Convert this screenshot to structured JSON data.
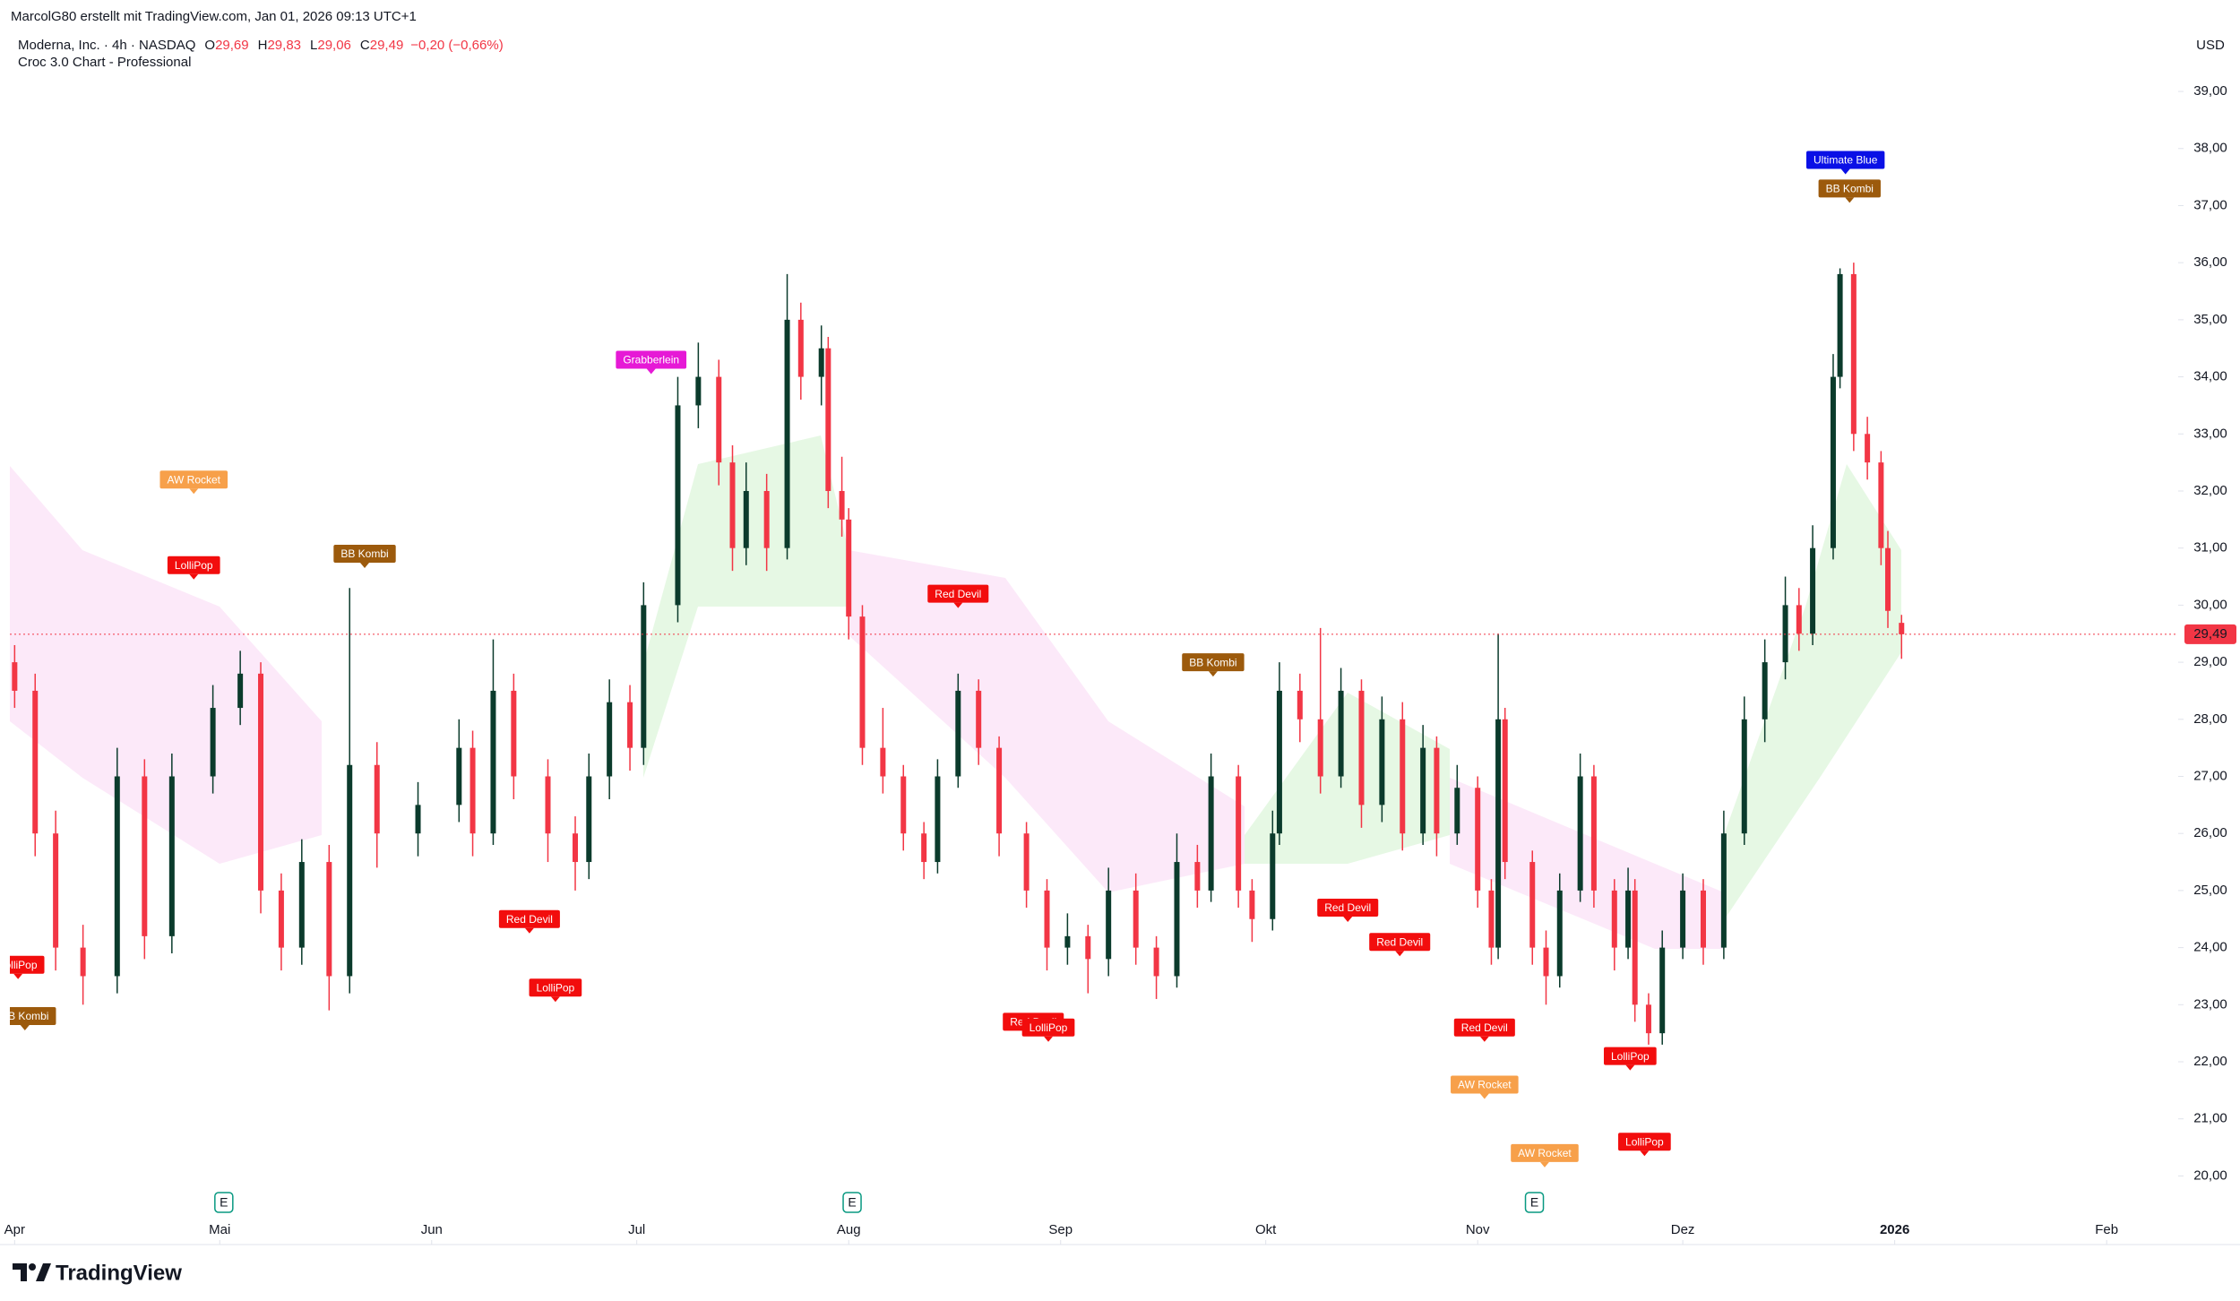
{
  "header": {
    "credit": "MarcolG80 erstellt mit TradingView.com, Jan 01, 2026 09:13 UTC+1",
    "symbol": "Moderna, Inc. · 4h · NASDAQ",
    "legend": [
      {
        "key": "O",
        "value": "29,69"
      },
      {
        "key": "H",
        "value": "29,83"
      },
      {
        "key": "L",
        "value": "29,06"
      },
      {
        "key": "C",
        "value": "29,49"
      }
    ],
    "change": "−0,20 (−0,66%)",
    "indicator": "Croc 3.0 Chart - Professional",
    "currency": "USD"
  },
  "brand": "TradingView",
  "chart_data": {
    "type": "candlestick",
    "up_color": "#0b3b2c",
    "down_color": "#f23645",
    "xlim": [
      -0.7,
      316.2
    ],
    "xticks": [
      {
        "value": 0,
        "label": "Apr"
      },
      {
        "value": 30,
        "label": "Mai"
      },
      {
        "value": 61,
        "label": "Jun"
      },
      {
        "value": 91,
        "label": "Jul"
      },
      {
        "value": 122,
        "label": "Aug"
      },
      {
        "value": 153,
        "label": "Sep"
      },
      {
        "value": 183,
        "label": "Okt"
      },
      {
        "value": 214,
        "label": "Nov"
      },
      {
        "value": 244,
        "label": "Dez"
      },
      {
        "value": 275,
        "label": "2026"
      },
      {
        "value": 306,
        "label": "Feb"
      }
    ],
    "ylim": [
      19.3,
      40.1
    ],
    "yticks": [
      {
        "value": 20,
        "label": "20,00"
      },
      {
        "value": 21,
        "label": "21,00"
      },
      {
        "value": 22,
        "label": "22,00"
      },
      {
        "value": 23,
        "label": "23,00"
      },
      {
        "value": 24,
        "label": "24,00"
      },
      {
        "value": 25,
        "label": "25,00"
      },
      {
        "value": 26,
        "label": "26,00"
      },
      {
        "value": 27,
        "label": "27,00"
      },
      {
        "value": 28,
        "label": "28,00"
      },
      {
        "value": 29,
        "label": "29,00"
      },
      {
        "value": 30,
        "label": "30,00"
      },
      {
        "value": 31,
        "label": "31,00"
      },
      {
        "value": 32,
        "label": "32,00"
      },
      {
        "value": 33,
        "label": "33,00"
      },
      {
        "value": 34,
        "label": "34,00"
      },
      {
        "value": 35,
        "label": "35,00"
      },
      {
        "value": 36,
        "label": "36,00"
      },
      {
        "value": 37,
        "label": "37,00"
      },
      {
        "value": 38,
        "label": "38,00"
      },
      {
        "value": 39,
        "label": "39,00"
      }
    ],
    "candles": [
      [
        0,
        29.0,
        29.3,
        28.2,
        28.5
      ],
      [
        3,
        28.5,
        28.8,
        25.6,
        26.0
      ],
      [
        6,
        26.0,
        26.4,
        23.6,
        24.0
      ],
      [
        10,
        24.0,
        24.4,
        23.0,
        23.5
      ],
      [
        15,
        23.5,
        27.5,
        23.2,
        27.0
      ],
      [
        19,
        27.0,
        27.3,
        23.8,
        24.2
      ],
      [
        23,
        24.2,
        27.4,
        23.9,
        27.0
      ],
      [
        29,
        27.0,
        28.6,
        26.7,
        28.2
      ],
      [
        33,
        28.2,
        29.2,
        27.9,
        28.8
      ],
      [
        36,
        28.8,
        29.0,
        24.6,
        25.0
      ],
      [
        39,
        25.0,
        25.3,
        23.6,
        24.0
      ],
      [
        42,
        24.0,
        25.9,
        23.7,
        25.5
      ],
      [
        46,
        25.5,
        25.8,
        22.9,
        23.5
      ],
      [
        49,
        23.5,
        30.3,
        23.2,
        27.2
      ],
      [
        53,
        27.2,
        27.6,
        25.4,
        26.0
      ],
      [
        59,
        26.0,
        26.9,
        25.6,
        26.5
      ],
      [
        65,
        26.5,
        28.0,
        26.2,
        27.5
      ],
      [
        67,
        27.5,
        27.8,
        25.6,
        26.0
      ],
      [
        70,
        26.0,
        29.4,
        25.8,
        28.5
      ],
      [
        73,
        28.5,
        28.8,
        26.6,
        27.0
      ],
      [
        78,
        27.0,
        27.3,
        25.5,
        26.0
      ],
      [
        82,
        26.0,
        26.3,
        25.0,
        25.5
      ],
      [
        84,
        25.5,
        27.4,
        25.2,
        27.0
      ],
      [
        87,
        27.0,
        28.7,
        26.6,
        28.3
      ],
      [
        90,
        28.3,
        28.6,
        27.1,
        27.5
      ],
      [
        92,
        27.5,
        30.4,
        27.2,
        30.0
      ],
      [
        97,
        30.0,
        34.0,
        29.7,
        33.5
      ],
      [
        100,
        33.5,
        34.6,
        33.1,
        34.0
      ],
      [
        103,
        34.0,
        34.3,
        32.1,
        32.5
      ],
      [
        105,
        32.5,
        32.8,
        30.6,
        31.0
      ],
      [
        107,
        31.0,
        32.5,
        30.7,
        32.0
      ],
      [
        110,
        32.0,
        32.3,
        30.6,
        31.0
      ],
      [
        113,
        31.0,
        35.8,
        30.8,
        35.0
      ],
      [
        115,
        35.0,
        35.3,
        33.6,
        34.0
      ],
      [
        118,
        34.0,
        34.9,
        33.5,
        34.5
      ],
      [
        119,
        34.5,
        34.7,
        31.7,
        32.0
      ],
      [
        121,
        32.0,
        32.6,
        31.2,
        31.5
      ],
      [
        122,
        31.5,
        31.7,
        29.4,
        29.8
      ],
      [
        124,
        29.8,
        30.0,
        27.2,
        27.5
      ],
      [
        127,
        27.5,
        28.2,
        26.7,
        27.0
      ],
      [
        130,
        27.0,
        27.2,
        25.7,
        26.0
      ],
      [
        133,
        26.0,
        26.2,
        25.2,
        25.5
      ],
      [
        135,
        25.5,
        27.3,
        25.3,
        27.0
      ],
      [
        138,
        27.0,
        28.8,
        26.8,
        28.5
      ],
      [
        141,
        28.5,
        28.7,
        27.2,
        27.5
      ],
      [
        144,
        27.5,
        27.7,
        25.6,
        26.0
      ],
      [
        148,
        26.0,
        26.2,
        24.7,
        25.0
      ],
      [
        151,
        25.0,
        25.2,
        23.6,
        24.0
      ],
      [
        154,
        24.0,
        24.6,
        23.7,
        24.2
      ],
      [
        157,
        24.2,
        24.4,
        23.2,
        23.8
      ],
      [
        160,
        23.8,
        25.4,
        23.5,
        25.0
      ],
      [
        164,
        25.0,
        25.3,
        23.7,
        24.0
      ],
      [
        167,
        24.0,
        24.2,
        23.1,
        23.5
      ],
      [
        170,
        23.5,
        26.0,
        23.3,
        25.5
      ],
      [
        173,
        25.5,
        25.8,
        24.7,
        25.0
      ],
      [
        175,
        25.0,
        27.4,
        24.8,
        27.0
      ],
      [
        179,
        27.0,
        27.2,
        24.7,
        25.0
      ],
      [
        181,
        25.0,
        25.2,
        24.1,
        24.5
      ],
      [
        184,
        24.5,
        26.4,
        24.3,
        26.0
      ],
      [
        185,
        26.0,
        29.0,
        25.8,
        28.5
      ],
      [
        188,
        28.5,
        28.8,
        27.6,
        28.0
      ],
      [
        191,
        28.0,
        29.6,
        26.7,
        27.0
      ],
      [
        194,
        27.0,
        28.9,
        26.8,
        28.5
      ],
      [
        197,
        28.5,
        28.7,
        26.1,
        26.5
      ],
      [
        200,
        26.5,
        28.4,
        26.2,
        28.0
      ],
      [
        203,
        28.0,
        28.3,
        25.7,
        26.0
      ],
      [
        206,
        26.0,
        27.9,
        25.8,
        27.5
      ],
      [
        208,
        27.5,
        27.7,
        25.6,
        26.0
      ],
      [
        211,
        26.0,
        27.2,
        25.8,
        26.8
      ],
      [
        214,
        26.8,
        27.0,
        24.7,
        25.0
      ],
      [
        216,
        25.0,
        25.2,
        23.7,
        24.0
      ],
      [
        217,
        24.0,
        29.5,
        23.8,
        28.0
      ],
      [
        218,
        28.0,
        28.2,
        25.2,
        25.5
      ],
      [
        222,
        25.5,
        25.7,
        23.7,
        24.0
      ],
      [
        224,
        24.0,
        24.3,
        23.0,
        23.5
      ],
      [
        226,
        23.5,
        25.3,
        23.3,
        25.0
      ],
      [
        229,
        25.0,
        27.4,
        24.8,
        27.0
      ],
      [
        231,
        27.0,
        27.2,
        24.7,
        25.0
      ],
      [
        234,
        25.0,
        25.2,
        23.6,
        24.0
      ],
      [
        236,
        24.0,
        25.4,
        23.8,
        25.0
      ],
      [
        237,
        25.0,
        25.2,
        22.7,
        23.0
      ],
      [
        239,
        23.0,
        23.2,
        22.3,
        22.5
      ],
      [
        241,
        22.5,
        24.3,
        22.3,
        24.0
      ],
      [
        244,
        24.0,
        25.3,
        23.8,
        25.0
      ],
      [
        247,
        25.0,
        25.2,
        23.7,
        24.0
      ],
      [
        250,
        24.0,
        26.4,
        23.8,
        26.0
      ],
      [
        253,
        26.0,
        28.4,
        25.8,
        28.0
      ],
      [
        256,
        28.0,
        29.4,
        27.6,
        29.0
      ],
      [
        259,
        29.0,
        30.5,
        28.7,
        30.0
      ],
      [
        261,
        30.0,
        30.3,
        29.2,
        29.5
      ],
      [
        263,
        29.5,
        31.4,
        29.3,
        31.0
      ],
      [
        266,
        31.0,
        34.4,
        30.8,
        34.0
      ],
      [
        267,
        34.0,
        35.9,
        33.8,
        35.8
      ],
      [
        269,
        35.8,
        36.0,
        32.7,
        33.0
      ],
      [
        271,
        33.0,
        33.3,
        32.2,
        32.5
      ],
      [
        273,
        32.5,
        32.7,
        30.7,
        31.0
      ],
      [
        274,
        31.0,
        31.3,
        29.6,
        29.9
      ],
      [
        276,
        29.69,
        29.83,
        29.06,
        29.49
      ]
    ],
    "last_price": {
      "value": 29.49,
      "label": "29,49",
      "color": "#f23645"
    },
    "annotations": [
      {
        "text": "AW Rocket",
        "x": 26.2,
        "y": 32.2,
        "color": "#f7a04a"
      },
      {
        "text": "LolliPop",
        "x": 26.2,
        "y": 30.7,
        "color": "#f20d0d"
      },
      {
        "text": "BB Kombi",
        "x": 51.2,
        "y": 30.9,
        "color": "#9c5a0c"
      },
      {
        "text": "LolliPop",
        "x": 0.5,
        "y": 23.7,
        "color": "#f20d0d"
      },
      {
        "text": "BB Kombi",
        "x": 1.5,
        "y": 22.8,
        "color": "#9c5a0c"
      },
      {
        "text": "Grabberlein",
        "x": 93.1,
        "y": 34.3,
        "color": "#e619d6"
      },
      {
        "text": "Red Devil",
        "x": 75.3,
        "y": 24.5,
        "color": "#f20d0d"
      },
      {
        "text": "LolliPop",
        "x": 79.1,
        "y": 23.3,
        "color": "#f20d0d"
      },
      {
        "text": "Red Devil",
        "x": 138,
        "y": 30.2,
        "color": "#f20d0d"
      },
      {
        "text": "Red Devil",
        "x": 149,
        "y": 22.7,
        "color": "#f20d0d"
      },
      {
        "text": "LolliPop",
        "x": 151.2,
        "y": 22.6,
        "color": "#f20d0d"
      },
      {
        "text": "BB Kombi",
        "x": 175.3,
        "y": 29.0,
        "color": "#9c5a0c"
      },
      {
        "text": "Red Devil",
        "x": 195,
        "y": 24.7,
        "color": "#f20d0d"
      },
      {
        "text": "Red Devil",
        "x": 202.6,
        "y": 24.1,
        "color": "#f20d0d"
      },
      {
        "text": "Red Devil",
        "x": 215,
        "y": 22.6,
        "color": "#f20d0d"
      },
      {
        "text": "AW Rocket",
        "x": 215,
        "y": 21.6,
        "color": "#f7a04a"
      },
      {
        "text": "AW Rocket",
        "x": 223.8,
        "y": 20.4,
        "color": "#f7a04a"
      },
      {
        "text": "LolliPop",
        "x": 236.3,
        "y": 22.1,
        "color": "#f20d0d"
      },
      {
        "text": "LolliPop",
        "x": 238.4,
        "y": 20.6,
        "color": "#f20d0d"
      },
      {
        "text": "Ultimate Blue",
        "x": 267.8,
        "y": 37.8,
        "color": "#0a10e6"
      },
      {
        "text": "BB Kombi",
        "x": 268.4,
        "y": 37.3,
        "color": "#9c5a0c"
      }
    ],
    "earnings": {
      "label": "E",
      "x": [
        30.6,
        122.5,
        222.3
      ]
    }
  }
}
